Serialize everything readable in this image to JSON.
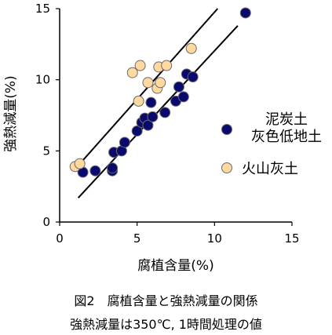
{
  "chart_data": {
    "type": "scatter",
    "xlabel": "腐植含量(%)",
    "ylabel": "強熱減量(%)",
    "xlim": [
      0,
      15
    ],
    "ylim": [
      0,
      15
    ],
    "xticks": [
      "0",
      "5",
      "10",
      "15"
    ],
    "yticks": [
      "0",
      "5",
      "10",
      "15"
    ],
    "grid": false,
    "legend_position": "right",
    "series": [
      {
        "name": "泥炭土\n灰色低地土",
        "name_lines": [
          "泥炭土",
          "灰色低地土"
        ],
        "color": "#0a0a6e",
        "points": [
          [
            1.5,
            3.5
          ],
          [
            2.3,
            3.6
          ],
          [
            3.4,
            3.6
          ],
          [
            3.4,
            3.8
          ],
          [
            3.5,
            4.9
          ],
          [
            4.0,
            5.0
          ],
          [
            4.2,
            5.6
          ],
          [
            5.0,
            6.4
          ],
          [
            5.3,
            7.0
          ],
          [
            5.5,
            7.3
          ],
          [
            5.7,
            6.8
          ],
          [
            6.0,
            7.4
          ],
          [
            6.8,
            7.7
          ],
          [
            7.5,
            8.5
          ],
          [
            7.7,
            9.5
          ],
          [
            8.0,
            8.8
          ],
          [
            8.2,
            10.4
          ],
          [
            8.6,
            10.2
          ],
          [
            5.9,
            8.4
          ],
          [
            12.0,
            14.7
          ]
        ],
        "fit_line": {
          "x": [
            1.2,
            11.5
          ],
          "y": [
            1.7,
            13.8
          ]
        }
      },
      {
        "name": "火山灰土",
        "color": "#ffd9a0",
        "points": [
          [
            1.0,
            3.9
          ],
          [
            1.3,
            4.1
          ],
          [
            4.7,
            10.5
          ],
          [
            5.2,
            11.0
          ],
          [
            5.1,
            8.5
          ],
          [
            5.7,
            9.8
          ],
          [
            6.3,
            9.4
          ],
          [
            6.5,
            9.8
          ],
          [
            6.4,
            10.9
          ],
          [
            6.9,
            11.0
          ],
          [
            8.5,
            12.2
          ]
        ],
        "fit_line": {
          "x": [
            0.9,
            10.2
          ],
          "y": [
            3.6,
            15.0
          ]
        }
      }
    ]
  },
  "caption": {
    "line1": "図2　腐植含量と強熱減量の関係",
    "line2": "強熱減量は350℃, 1時間処理の値"
  }
}
